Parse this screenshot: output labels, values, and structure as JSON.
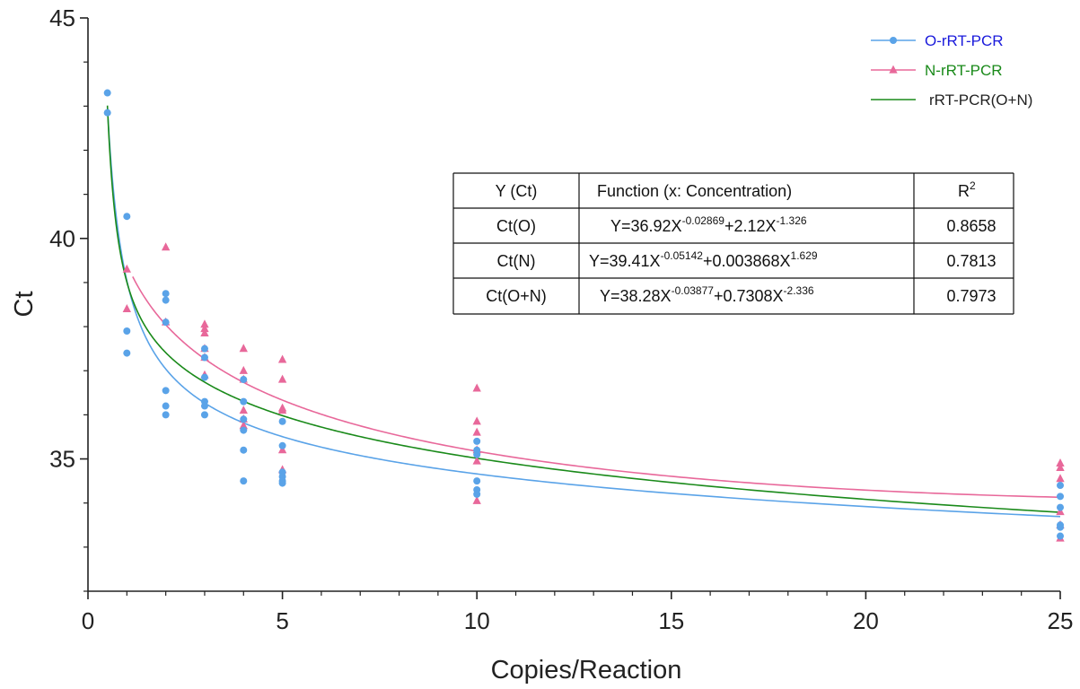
{
  "chart_data": {
    "type": "scatter",
    "xlabel": "Copies/Reaction",
    "ylabel": "Ct",
    "xlim": [
      0,
      25
    ],
    "ylim": [
      32,
      45
    ],
    "xticks": [
      "0",
      "5",
      "10",
      "15",
      "20",
      "25"
    ],
    "yticks": [
      "35",
      "40",
      "45"
    ],
    "grid": false,
    "legend_position": "top-right",
    "series": [
      {
        "name": "O-rRT-PCR",
        "kind": "points+curve",
        "color": "#5aa3e8",
        "label_color": "#1a1adb",
        "marker": "circle",
        "points": [
          [
            0.5,
            43.3
          ],
          [
            0.5,
            42.85
          ],
          [
            1,
            40.5
          ],
          [
            1,
            37.9
          ],
          [
            1,
            37.4
          ],
          [
            2,
            38.75
          ],
          [
            2,
            38.6
          ],
          [
            2,
            38.1
          ],
          [
            2,
            36.55
          ],
          [
            2,
            36.2
          ],
          [
            2,
            36.0
          ],
          [
            3,
            37.5
          ],
          [
            3,
            37.3
          ],
          [
            3,
            36.85
          ],
          [
            3,
            36.3
          ],
          [
            3,
            36.2
          ],
          [
            3,
            36.0
          ],
          [
            4,
            36.8
          ],
          [
            4,
            36.3
          ],
          [
            4,
            35.9
          ],
          [
            4,
            35.65
          ],
          [
            4,
            35.2
          ],
          [
            4,
            34.5
          ],
          [
            5,
            35.85
          ],
          [
            5,
            35.3
          ],
          [
            5,
            34.7
          ],
          [
            5,
            34.6
          ],
          [
            5,
            34.5
          ],
          [
            5,
            34.45
          ],
          [
            10,
            35.4
          ],
          [
            10,
            35.2
          ],
          [
            10,
            35.1
          ],
          [
            10,
            34.5
          ],
          [
            10,
            34.3
          ],
          [
            10,
            34.2
          ],
          [
            25,
            34.4
          ],
          [
            25,
            34.15
          ],
          [
            25,
            33.9
          ],
          [
            25,
            33.5
          ],
          [
            25,
            33.45
          ],
          [
            25,
            33.25
          ]
        ],
        "fit": {
          "a": 36.92,
          "b": -0.02869,
          "c": 2.12,
          "d": -1.326,
          "x_range": [
            0.5,
            25
          ]
        }
      },
      {
        "name": "N-rRT-PCR",
        "kind": "points+curve",
        "color": "#e8689a",
        "label_color": "#1a8a1a",
        "marker": "triangle",
        "points": [
          [
            1,
            39.3
          ],
          [
            1,
            38.4
          ],
          [
            2,
            39.8
          ],
          [
            2,
            38.1
          ],
          [
            3,
            38.05
          ],
          [
            3,
            37.95
          ],
          [
            3,
            37.85
          ],
          [
            3,
            37.5
          ],
          [
            3,
            37.3
          ],
          [
            3,
            36.9
          ],
          [
            4,
            37.5
          ],
          [
            4,
            37.0
          ],
          [
            4,
            36.8
          ],
          [
            4,
            36.1
          ],
          [
            4,
            35.9
          ],
          [
            4,
            35.75
          ],
          [
            5,
            37.25
          ],
          [
            5,
            36.8
          ],
          [
            5,
            36.15
          ],
          [
            5,
            36.1
          ],
          [
            5,
            35.2
          ],
          [
            5,
            34.75
          ],
          [
            10,
            36.6
          ],
          [
            10,
            35.85
          ],
          [
            10,
            35.6
          ],
          [
            10,
            35.2
          ],
          [
            10,
            34.95
          ],
          [
            10,
            34.05
          ],
          [
            25,
            34.9
          ],
          [
            25,
            34.8
          ],
          [
            25,
            34.55
          ],
          [
            25,
            33.8
          ],
          [
            25,
            33.5
          ],
          [
            25,
            33.2
          ]
        ],
        "fit": {
          "a": 39.41,
          "b": -0.05142,
          "c": 0.003868,
          "d": 1.629,
          "x_range": [
            1.15,
            25
          ]
        }
      },
      {
        "name": "rRT-PCR(O+N)",
        "kind": "curve",
        "color": "#1a8a1a",
        "label_color": "#222222",
        "fit": {
          "a": 38.28,
          "b": -0.03877,
          "c": 0.7308,
          "d": -2.336,
          "x_range": [
            0.5,
            25
          ]
        }
      }
    ],
    "fit_table": {
      "headers": [
        "Y (Ct)",
        "Function   (x: Concentration)",
        "R"
      ],
      "r_header_sup": "2",
      "rows": [
        {
          "y": "Ct(O)",
          "f1": "Y=36.92X",
          "e1": "-0.02869",
          "f2": "+2.12X",
          "e2": "-1.326",
          "r2": "0.8658"
        },
        {
          "y": "Ct(N)",
          "f1": "Y=39.41X",
          "e1": "-0.05142",
          "f2": "+0.003868X",
          "e2": "1.629",
          "r2": "0.7813"
        },
        {
          "y": "Ct(O+N)",
          "f1": "Y=38.28X",
          "e1": "-0.03877",
          "f2": "+0.7308X",
          "e2": "-2.336",
          "r2": "0.7973"
        }
      ]
    }
  }
}
